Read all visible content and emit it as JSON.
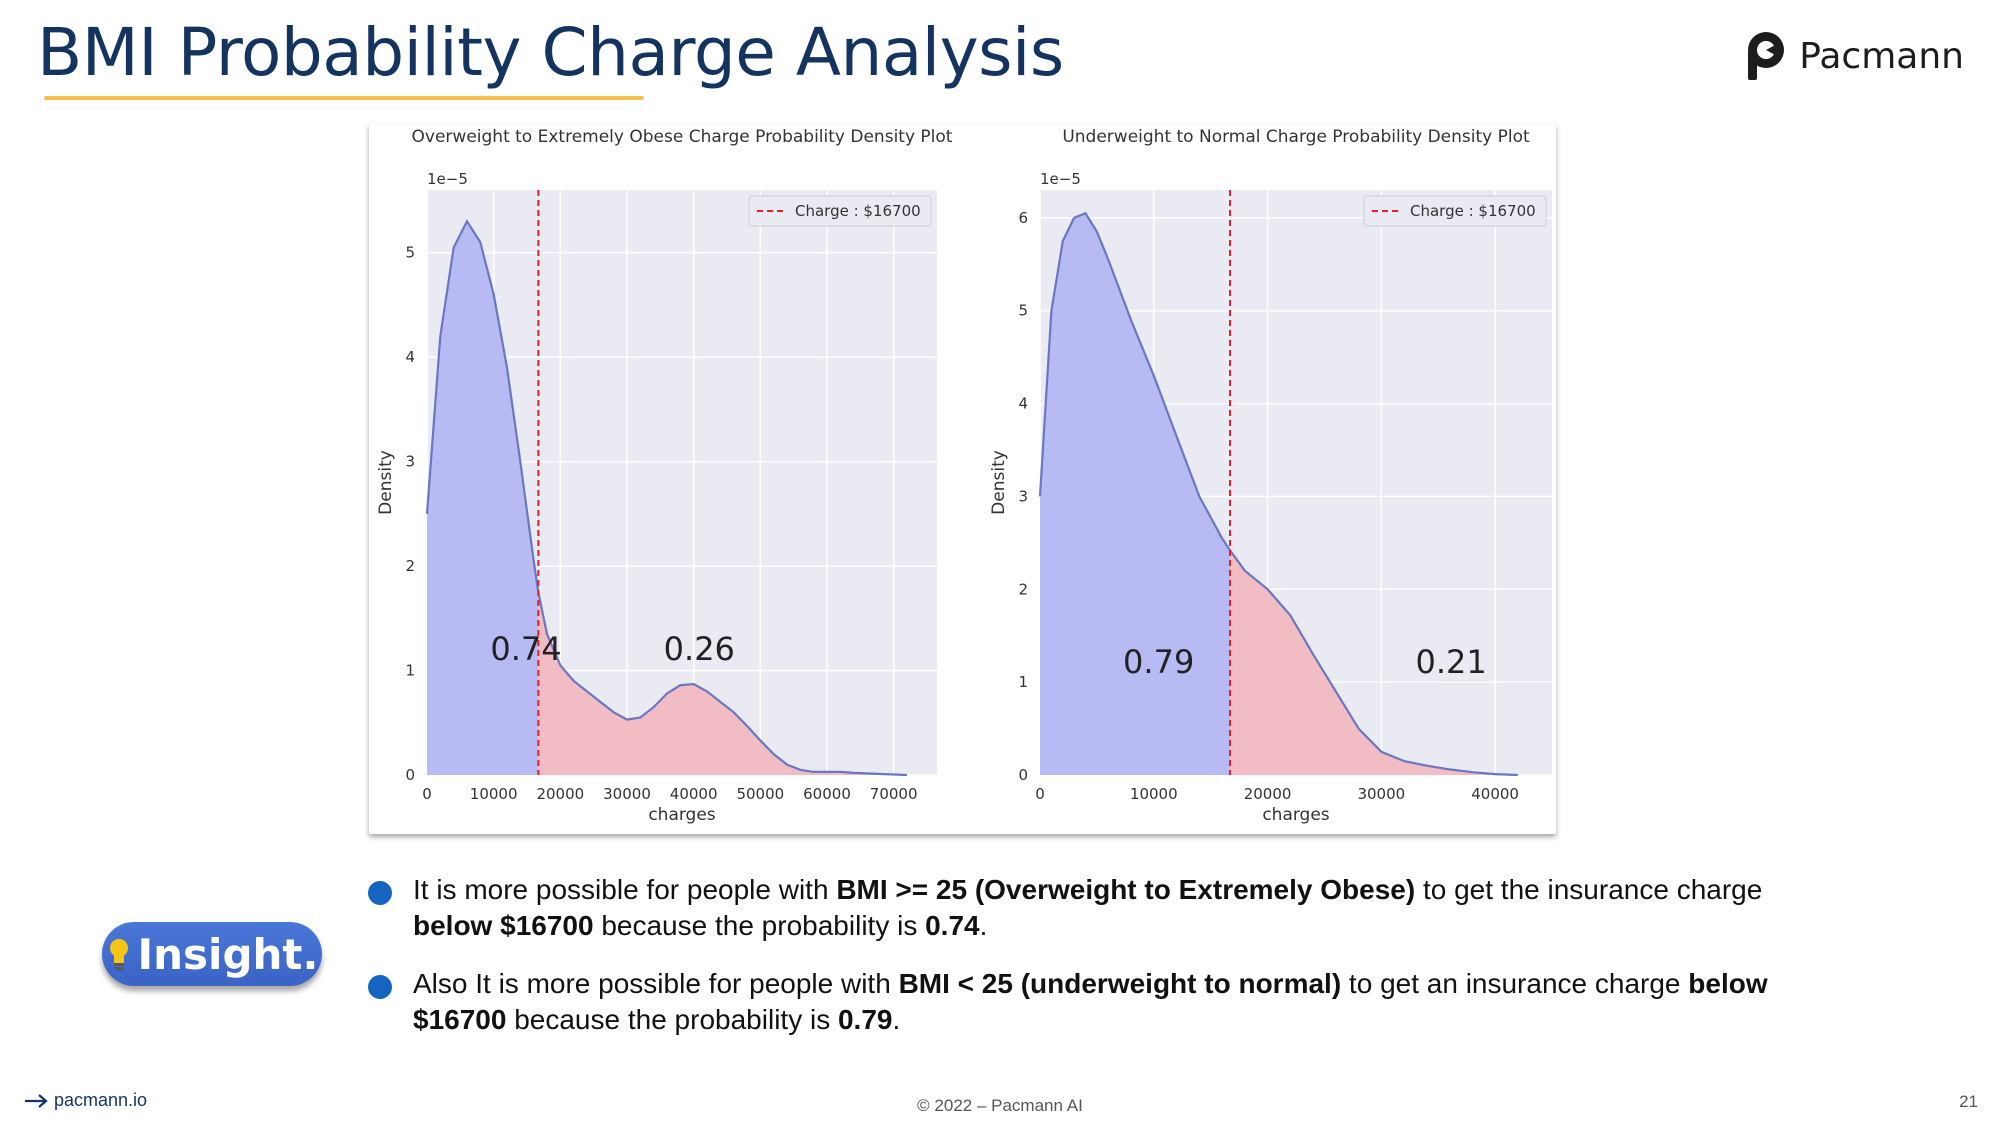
{
  "slide": {
    "title": "BMI Probability Charge Analysis",
    "brand_name": "Pacmann",
    "footer_link": "pacmann.io",
    "copyright": "© 2022 – Pacmann AI",
    "page_number": "21",
    "insight_label": "Insight.",
    "colors": {
      "title": "#14335e",
      "underline": "#f2c14e",
      "bullet": "#1565c0",
      "badge": "#4a78d8"
    }
  },
  "bullets": [
    {
      "p1": "It is more possible for people with ",
      "b1": "BMI >= 25 (Overweight to Extremely Obese)",
      "p2": " to get the insurance charge ",
      "b2": "below $16700",
      "p3": " because the probability is ",
      "b3": "0.74",
      "p4": "."
    },
    {
      "p1": "Also It is more possible for people with ",
      "b1": "BMI < 25 (underweight to normal)",
      "p2": " to get an insurance charge ",
      "b2": "below $16700",
      "p3": " because the probability is ",
      "b3": "0.79",
      "p4": "."
    }
  ],
  "chart_data": [
    {
      "type": "area",
      "title": "Overweight to Extremely Obese Charge Probability Density Plot",
      "xlabel": "charges",
      "ylabel": "Density",
      "y_multiplier_label": "1e−5",
      "xlim": [
        0,
        76500
      ],
      "ylim": [
        0,
        5.6
      ],
      "xticks": [
        0,
        10000,
        20000,
        30000,
        40000,
        50000,
        60000,
        70000
      ],
      "yticks": [
        0,
        1,
        2,
        3,
        4,
        5
      ],
      "grid": true,
      "legend": {
        "label": "Charge : $16700",
        "placement": "top-right"
      },
      "threshold": 16700,
      "annotations": [
        {
          "text": "0.74",
          "x": 9500,
          "y": 1.1
        },
        {
          "text": "0.26",
          "x": 35500,
          "y": 1.1
        }
      ],
      "colors": {
        "below": "#b7baf3",
        "above": "#f2bcc4",
        "line": "#6a77c2",
        "threshold": "#e8202a",
        "plot_bg": "#eaeaf2"
      },
      "x": [
        0,
        2000,
        4000,
        6000,
        8000,
        10000,
        12000,
        14000,
        16000,
        16700,
        18000,
        20000,
        22000,
        24000,
        26000,
        28000,
        30000,
        32000,
        34000,
        36000,
        38000,
        40000,
        42000,
        44000,
        46000,
        48000,
        50000,
        52000,
        54000,
        56000,
        58000,
        60000,
        62000,
        64000,
        66000,
        68000,
        70000,
        72000
      ],
      "y": [
        2.5,
        4.2,
        5.05,
        5.3,
        5.1,
        4.6,
        3.9,
        3.0,
        2.05,
        1.75,
        1.35,
        1.05,
        0.9,
        0.8,
        0.7,
        0.6,
        0.53,
        0.55,
        0.65,
        0.78,
        0.86,
        0.87,
        0.8,
        0.7,
        0.6,
        0.47,
        0.33,
        0.2,
        0.1,
        0.05,
        0.03,
        0.03,
        0.03,
        0.02,
        0.015,
        0.01,
        0.005,
        0.0
      ]
    },
    {
      "type": "area",
      "title": "Underweight to Normal Charge Probability Density Plot",
      "xlabel": "charges",
      "ylabel": "Density",
      "y_multiplier_label": "1e−5",
      "xlim": [
        0,
        45000
      ],
      "ylim": [
        0,
        6.3
      ],
      "xticks": [
        0,
        10000,
        20000,
        30000,
        40000
      ],
      "yticks": [
        0,
        1,
        2,
        3,
        4,
        5,
        6
      ],
      "grid": true,
      "legend": {
        "label": "Charge : $16700",
        "placement": "top-right"
      },
      "threshold": 16700,
      "annotations": [
        {
          "text": "0.79",
          "x": 7300,
          "y": 1.1
        },
        {
          "text": "0.21",
          "x": 33000,
          "y": 1.1
        }
      ],
      "colors": {
        "below": "#b7baf3",
        "above": "#f2bcc4",
        "line": "#6a77c2",
        "threshold": "#e8202a",
        "plot_bg": "#eaeaf2"
      },
      "x": [
        0,
        1000,
        2000,
        3000,
        4000,
        5000,
        6000,
        8000,
        10000,
        12000,
        14000,
        16000,
        16700,
        18000,
        20000,
        22000,
        24000,
        26000,
        28000,
        30000,
        32000,
        34000,
        36000,
        38000,
        40000,
        42000
      ],
      "y": [
        3.0,
        5.0,
        5.75,
        6.0,
        6.05,
        5.85,
        5.55,
        4.9,
        4.3,
        3.65,
        3.0,
        2.55,
        2.42,
        2.2,
        2.0,
        1.72,
        1.3,
        0.9,
        0.5,
        0.25,
        0.15,
        0.1,
        0.06,
        0.03,
        0.01,
        0.0
      ]
    }
  ]
}
